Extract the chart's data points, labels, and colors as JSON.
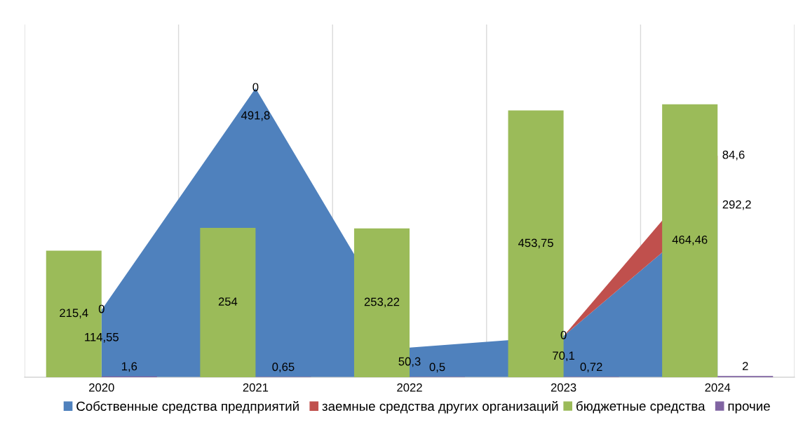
{
  "chart_data": [
    {
      "type": "area",
      "stacked": true,
      "categories": [
        "2020",
        "2021",
        "2022",
        "2023",
        "2024"
      ],
      "ylim": [
        0,
        600
      ],
      "tick_labels": "x",
      "grid": "x",
      "legend": "bottom",
      "series": [
        {
          "name": "Собственные средства предприятий",
          "color": "#4f81bd",
          "values": [
            114.55,
            491.8,
            50.3,
            70.1,
            292.2
          ],
          "value_labels": [
            "114,55",
            "491,8",
            "50,3",
            "70,1",
            "292,2"
          ]
        },
        {
          "name": "заемные средства других организаций",
          "color": "#c0504d",
          "values": [
            0,
            0,
            0,
            0,
            84.6
          ],
          "value_labels": [
            "0",
            "0",
            null,
            "0",
            "84,6"
          ]
        }
      ]
    },
    {
      "type": "bar",
      "categories": [
        "2020",
        "2021",
        "2022",
        "2023",
        "2024"
      ],
      "ylim": [
        0,
        600
      ],
      "tick_labels": false,
      "legend": "bottom",
      "series": [
        {
          "name": "бюджетные средства",
          "color": "#9bbb59",
          "values": [
            215.4,
            254,
            253.22,
            453.75,
            464.46
          ],
          "value_labels": [
            "215,4",
            "254",
            "253,22",
            "453,75",
            "464,46"
          ]
        },
        {
          "name": "прочие",
          "color": "#8064a2",
          "values": [
            1.6,
            0.65,
            0.5,
            0.72,
            2
          ],
          "value_labels": [
            "1,6",
            "0,65",
            "0,5",
            "0,72",
            "2"
          ]
        }
      ]
    }
  ]
}
